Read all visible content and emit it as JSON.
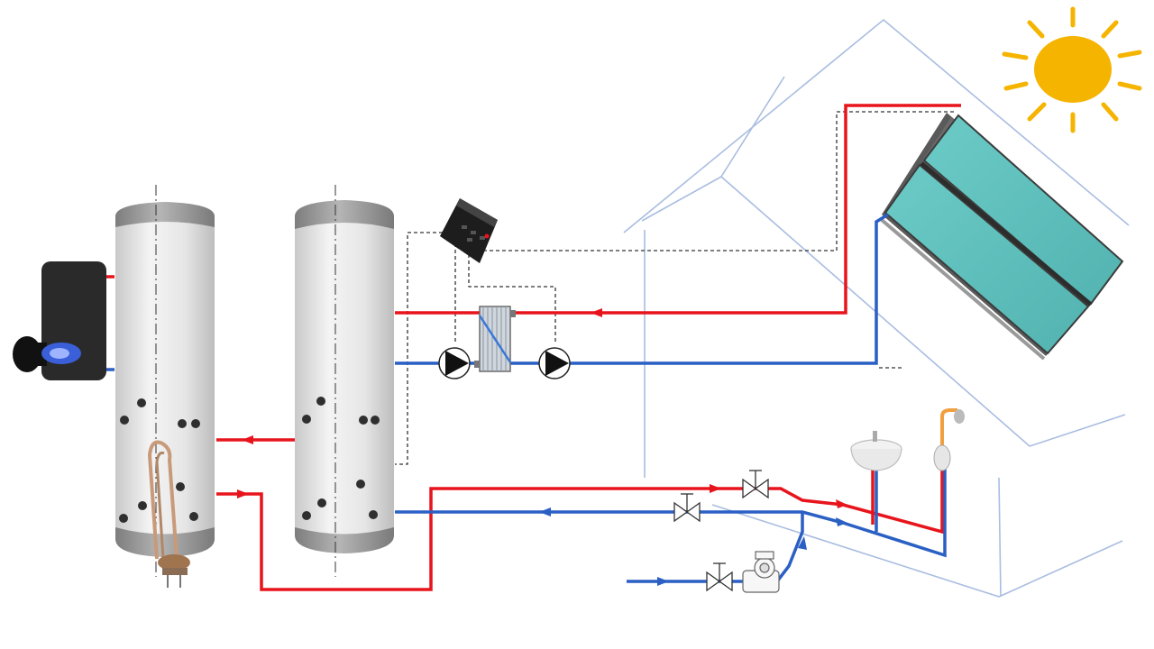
{
  "diagram": {
    "type": "solar-water-heating-schematic",
    "colors": {
      "hot": "#e8141c",
      "cold": "#2a5fc4",
      "house_outline": "#a9bde0",
      "tank_body": "#ececec",
      "tank_cap": "#9a9a9a",
      "collector": "#5ebfbc",
      "collector_frame": "#5a5a5a",
      "sun": "#f5b400",
      "boiler": "#2a2a2a",
      "flame": "#3a5fd9",
      "control_wire": "#333333"
    },
    "components": [
      {
        "id": "sun",
        "icon": "sun-icon"
      },
      {
        "id": "solar-collector",
        "icon": "flat-plate-collector-icon"
      },
      {
        "id": "house",
        "icon": "house-outline-icon"
      },
      {
        "id": "gas-boiler",
        "icon": "boiler-burner-icon"
      },
      {
        "id": "storage-tank-left",
        "icon": "tank-icon"
      },
      {
        "id": "storage-tank-right",
        "icon": "tank-icon"
      },
      {
        "id": "electric-heater",
        "icon": "immersion-heater-icon"
      },
      {
        "id": "solar-controller",
        "icon": "controller-icon"
      },
      {
        "id": "heat-exchanger",
        "icon": "plate-heat-exchanger-icon"
      },
      {
        "id": "pump-left",
        "icon": "pump-icon"
      },
      {
        "id": "pump-right",
        "icon": "pump-icon"
      },
      {
        "id": "valve-hot",
        "icon": "valve-icon"
      },
      {
        "id": "valve-cold",
        "icon": "valve-icon"
      },
      {
        "id": "valve-inlet",
        "icon": "valve-icon"
      },
      {
        "id": "water-meter",
        "icon": "water-meter-icon"
      },
      {
        "id": "washbasin",
        "icon": "sink-icon"
      },
      {
        "id": "shower",
        "icon": "shower-icon"
      }
    ]
  }
}
